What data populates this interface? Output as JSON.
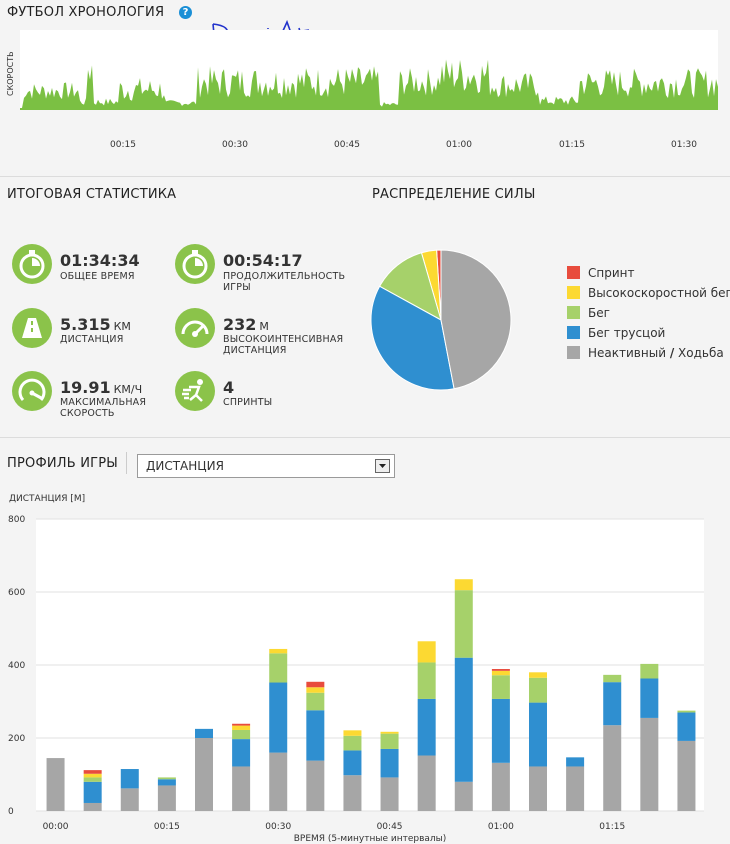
{
  "timeline": {
    "title": "ФУТБОЛ ХРОНОЛОГИЯ",
    "help": "?",
    "ylabel": "СКОРОСТЬ",
    "signature": "Dav... (handwritten)",
    "ticks": [
      "00:15",
      "00:30",
      "00:45",
      "01:00",
      "01:15",
      "01:30"
    ],
    "color": "#7bc043"
  },
  "summary": {
    "title": "ИТОГОВАЯ СТАТИСТИКА",
    "stats": [
      {
        "value": "01:34:34",
        "unit": "",
        "label": "ОБЩЕЕ ВРЕМЯ",
        "icon": "stopwatch-icon"
      },
      {
        "value": "00:54:17",
        "unit": "",
        "label": "ПРОДОЛЖИТЕЛЬНОСТЬ ИГРЫ",
        "icon": "stopwatch-icon"
      },
      {
        "value": "5.315",
        "unit": "КМ",
        "label": "ДИСТАНЦИЯ",
        "icon": "road-icon"
      },
      {
        "value": "232",
        "unit": "М",
        "label": "ВЫСОКОИНТЕНСИВНАЯ ДИСТАНЦИЯ",
        "icon": "speedometer-icon"
      },
      {
        "value": "19.91",
        "unit": "КМ/Ч",
        "label": "МАКСИМАЛЬНАЯ СКОРОСТЬ",
        "icon": "gauge-icon"
      },
      {
        "value": "4",
        "unit": "",
        "label": "СПРИНТЫ",
        "icon": "sprinter-icon"
      }
    ]
  },
  "distribution": {
    "title": "РАСПРЕДЕЛЕНИЕ СИЛЫ",
    "legend": [
      {
        "label": "Спринт",
        "color": "#e84c3d"
      },
      {
        "label": "Высокоскоростной бег",
        "color": "#fcd932"
      },
      {
        "label": "Бег",
        "color": "#a6d16a"
      },
      {
        "label": "Бег трусцой",
        "color": "#2f8fd0"
      },
      {
        "label": "Неактивный / Ходьба",
        "color": "#a6a6a6"
      }
    ],
    "legend_label_b": "Неактивный",
    "legend_slash": "/",
    "legend_label_c": "Ходьба"
  },
  "profile": {
    "title": "ПРОФИЛЬ ИГРЫ",
    "select_value": "ДИСТАНЦИЯ"
  },
  "chart_data": [
    {
      "type": "pie",
      "title": "РАСПРЕДЕЛЕНИЕ СИЛЫ",
      "slices": [
        {
          "name": "Спринт",
          "value": 1
        },
        {
          "name": "Высокоскоростной бег",
          "value": 3.5
        },
        {
          "name": "Бег",
          "value": 12.5
        },
        {
          "name": "Бег трусцой",
          "value": 36
        },
        {
          "name": "Неактивный / Ходьба",
          "value": 47
        }
      ]
    },
    {
      "type": "bar",
      "stacked": true,
      "ylabel": "ДИСТАНЦИЯ [М]",
      "xlabel": "ВРЕМЯ (5-минутные интервалы)",
      "ylim": [
        0,
        800
      ],
      "yticks": [
        0,
        200,
        400,
        600,
        800
      ],
      "xticks": [
        "00:00",
        "00:15",
        "00:30",
        "00:45",
        "01:00",
        "01:15"
      ],
      "categories": [
        "00:00",
        "00:05",
        "00:10",
        "00:15",
        "00:20",
        "00:25",
        "00:30",
        "00:35",
        "00:40",
        "00:45",
        "00:50",
        "00:55",
        "01:00",
        "01:05",
        "01:10",
        "01:15",
        "01:20",
        "01:25"
      ],
      "series": [
        {
          "name": "Неактивный / Ходьба",
          "values": [
            145,
            22,
            62,
            70,
            200,
            122,
            160,
            138,
            98,
            92,
            152,
            80,
            132,
            122,
            122,
            235,
            255,
            192
          ]
        },
        {
          "name": "Бег трусцой",
          "values": [
            0,
            58,
            53,
            17,
            25,
            75,
            192,
            138,
            68,
            78,
            155,
            340,
            175,
            175,
            25,
            118,
            108,
            78
          ]
        },
        {
          "name": "Бег",
          "values": [
            0,
            12,
            0,
            5,
            0,
            25,
            80,
            48,
            40,
            42,
            100,
            185,
            65,
            68,
            0,
            20,
            40,
            5
          ]
        },
        {
          "name": "Высокоскоростной бег",
          "values": [
            0,
            10,
            0,
            0,
            0,
            12,
            12,
            15,
            15,
            5,
            58,
            30,
            12,
            15,
            0,
            0,
            0,
            0
          ]
        },
        {
          "name": "Спринт",
          "values": [
            0,
            10,
            0,
            0,
            0,
            5,
            0,
            15,
            0,
            0,
            0,
            0,
            5,
            0,
            0,
            0,
            0,
            0
          ]
        }
      ],
      "grid": true
    }
  ]
}
